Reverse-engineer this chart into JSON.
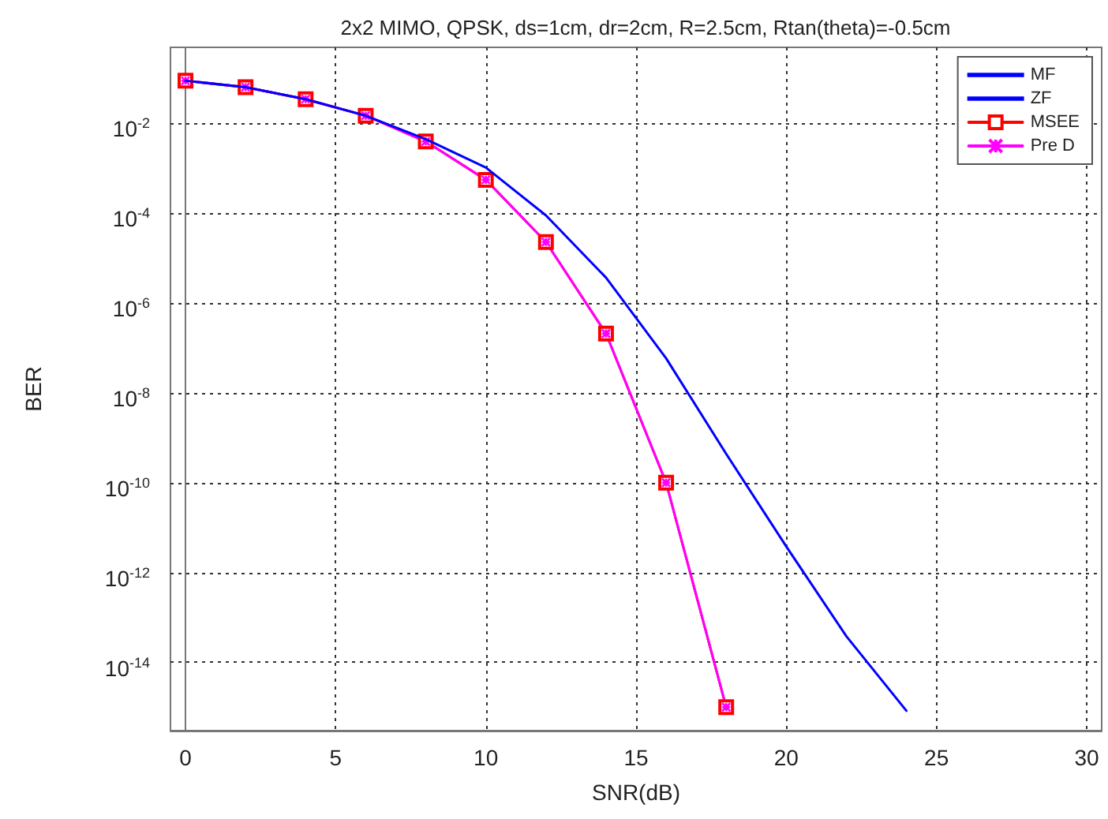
{
  "chart_data": {
    "type": "line",
    "title": "2x2 MIMO, QPSK, ds=1cm, dr=2cm, R=2.5cm, Rtan(theta)=-0.5cm",
    "xlabel": "SNR(dB)",
    "ylabel": "BER",
    "x": [
      0,
      2,
      4,
      6,
      8,
      10,
      12,
      14,
      16,
      18
    ],
    "series": [
      {
        "name": "MF",
        "color": "#0000ff",
        "line_style": "solid",
        "marker": "none",
        "x": [
          0,
          2,
          4,
          6,
          8,
          10,
          12,
          14,
          16,
          18,
          20,
          22,
          24
        ],
        "values": [
          0.09,
          0.065,
          0.035,
          0.015,
          0.0045,
          0.00105,
          9e-05,
          3.7e-06,
          5.9e-08,
          4.4e-10,
          3.8e-12,
          3.8e-14,
          8.3e-16
        ]
      },
      {
        "name": "ZF",
        "color": "#0000ff",
        "line_style": "dashed",
        "marker": "none",
        "values": [
          null,
          null,
          null,
          null,
          null,
          null,
          null,
          null,
          null,
          null
        ]
      },
      {
        "name": "MSEE",
        "color": "#ff0000",
        "line_style": "solid",
        "marker": "square",
        "values": [
          0.09,
          0.065,
          0.035,
          0.015,
          0.004,
          0.00056,
          2.3e-05,
          2.1e-07,
          1e-10,
          1e-15
        ]
      },
      {
        "name": "Pre D",
        "color": "#ff00ff",
        "line_style": "solid",
        "marker": "cross",
        "values": [
          0.09,
          0.065,
          0.035,
          0.015,
          0.004,
          0.00056,
          2.3e-05,
          2.1e-07,
          1e-10,
          1e-15
        ]
      }
    ],
    "log": "y",
    "xlim": [
      -0.5,
      30.5
    ],
    "xticks": [
      0,
      5,
      10,
      15,
      20,
      25,
      30
    ],
    "ylim": [
      3e-16,
      0.5
    ],
    "yticks": [
      {
        "value": 0.01,
        "label": "10$^{-2}$"
      },
      {
        "value": 0.0001,
        "label": "10$^{-4}$"
      },
      {
        "value": 1e-06,
        "label": "10$^{-6}$"
      },
      {
        "value": 1e-08,
        "label": "10$^{-8}$"
      },
      {
        "value": 1e-10,
        "label": "10$^{-10}$"
      },
      {
        "value": 1e-12,
        "label": "10$^{-12}$"
      },
      {
        "value": 1e-14,
        "label": "10$^{-14}$"
      }
    ],
    "grid": true,
    "legend": "top right"
  }
}
